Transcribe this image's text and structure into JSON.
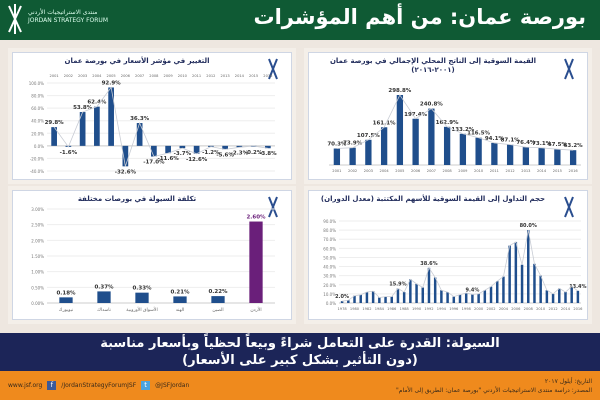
{
  "header": {
    "title": "بورصة عمان: من أهم المؤشرات",
    "org_ar": "منتدى الاستراتيجيات الأردني",
    "org_en": "JORDAN STRATEGY FORUM"
  },
  "banner": {
    "line1": "السيولة: القدرة على التعامل شراءً وبيعاً لحظياً وبأسعار مناسبة",
    "line2": "(دون التأثير بشكل كبير على الأسعار)"
  },
  "footer": {
    "website": "www.jsf.org",
    "facebook": "/JordanStrategyForumJSF",
    "twitter": "@JSFJordan",
    "date": "التاريخ: أيلول ٢٠١٧",
    "source": "المصدر: دراسة منتدى الاستراتيجيات الأردني \"بورصة عمان: الطريق إلى الأمام\""
  },
  "colors": {
    "bar": "#1f4e8c",
    "highlight": "#6a1f7a",
    "header": "#0f5a34",
    "banner": "#1c2558",
    "footer": "#ef8a1d"
  },
  "chart_data": [
    {
      "type": "bar",
      "title": "التغيير في مؤشر الأسعار في بورصة عمان",
      "categories": [
        "2001",
        "2002",
        "2003",
        "2004",
        "2005",
        "2006",
        "2007",
        "2008",
        "2009",
        "2010",
        "2011",
        "2012",
        "2013",
        "2014",
        "2015",
        "2016"
      ],
      "values": [
        29.8,
        -1.6,
        53.8,
        62.4,
        92.9,
        -32.6,
        36.3,
        -17.0,
        -11.6,
        -3.7,
        -12.6,
        -1.2,
        -5.6,
        -2.3,
        -0.2,
        -3.8
      ],
      "labels": [
        "29.8%",
        "-1.6%",
        "53.8%",
        "62.4%",
        "92.9%",
        "-32.6%",
        "36.3%",
        "-17.0%",
        "-11.6%",
        "-3.7%",
        "-12.6%",
        "-1.2%",
        "-5.6%",
        "-2.3%",
        "-0.2%",
        "-3.8%"
      ],
      "ylim": [
        -40,
        100
      ],
      "yticks": [
        "-40.0%",
        "-20.0%",
        "0.0%",
        "20.0%",
        "40.0%",
        "60.0%",
        "80.0%",
        "100.0%"
      ],
      "xaxis": "top"
    },
    {
      "type": "bar",
      "title": "القيمة السوقية إلى الناتج المحلي الإجمالي في بورصة عمان",
      "subtitle": "(٢٠٠١-٢٠١٦)",
      "categories": [
        "2001",
        "2002",
        "2003",
        "2004",
        "2005",
        "2006",
        "2007",
        "2008",
        "2009",
        "2010",
        "2011",
        "2012",
        "2013",
        "2014",
        "2015",
        "2016"
      ],
      "values": [
        70.3,
        73.9,
        107.5,
        161.1,
        298.8,
        197.4,
        240.8,
        162.9,
        133.2,
        116.5,
        94.1,
        87.1,
        76.4,
        73.1,
        67.5,
        63.2
      ],
      "labels": [
        "70.3%",
        "73.9%",
        "107.5%",
        "161.1%",
        "298.8%",
        "197.4%",
        "240.8%",
        "162.9%",
        "133.2%",
        "116.5%",
        "94.1%",
        "87.1%",
        "76.4%",
        "73.1%",
        "67.5%",
        "63.2%"
      ],
      "ylim": [
        0,
        350
      ]
    },
    {
      "type": "bar",
      "title": "تكلفة السيولة في بورصات مختلفة",
      "categories": [
        "نيويورك",
        "ناسداك",
        "الأسواق الأوروبية",
        "الهند",
        "الصين",
        "الأردن"
      ],
      "values": [
        0.18,
        0.37,
        0.33,
        0.21,
        0.22,
        2.6
      ],
      "labels": [
        "0.18%",
        "0.37%",
        "0.33%",
        "0.21%",
        "0.22%",
        "2.60%"
      ],
      "ylim": [
        0,
        3
      ],
      "yticks": [
        "0.00%",
        "0.50%",
        "1.00%",
        "1.50%",
        "2.00%",
        "2.50%",
        "3.00%"
      ],
      "highlight_index": 5
    },
    {
      "type": "bar",
      "title": "حجم التداول إلى القيمة السوقية للأسهم المكتتبة (معدل الدوران)",
      "categories": [
        "1978",
        "1979",
        "1980",
        "1981",
        "1982",
        "1983",
        "1984",
        "1985",
        "1986",
        "1987",
        "1988",
        "1989",
        "1990",
        "1991",
        "1992",
        "1993",
        "1994",
        "1995",
        "1996",
        "1997",
        "1998",
        "1999",
        "2000",
        "2001",
        "2002",
        "2003",
        "2004",
        "2005",
        "2006",
        "2007",
        "2008",
        "2009",
        "2010",
        "2011",
        "2012",
        "2013",
        "2014",
        "2015",
        "2016"
      ],
      "values": [
        2.0,
        3,
        8,
        9,
        12,
        13,
        6,
        7,
        7,
        15.9,
        12,
        26,
        21,
        17,
        38.6,
        28,
        14,
        12,
        7,
        9,
        11,
        9.4,
        10,
        14,
        18,
        24,
        29,
        63,
        67,
        42,
        80,
        43,
        30,
        14,
        10,
        16,
        12,
        18,
        13.4
      ],
      "labelled": {
        "0": "2.0%",
        "9": "15.9%",
        "14": "38.6%",
        "21": "9.4%",
        "30": "80.0%",
        "38": "13.4%"
      },
      "ylim": [
        0,
        90
      ],
      "yticks": [
        "0.0%",
        "10.0%",
        "20.0%",
        "30.0%",
        "40.0%",
        "50.0%",
        "60.0%",
        "70.0%",
        "80.0%",
        "90.0%"
      ],
      "xtick_every": 2
    }
  ]
}
